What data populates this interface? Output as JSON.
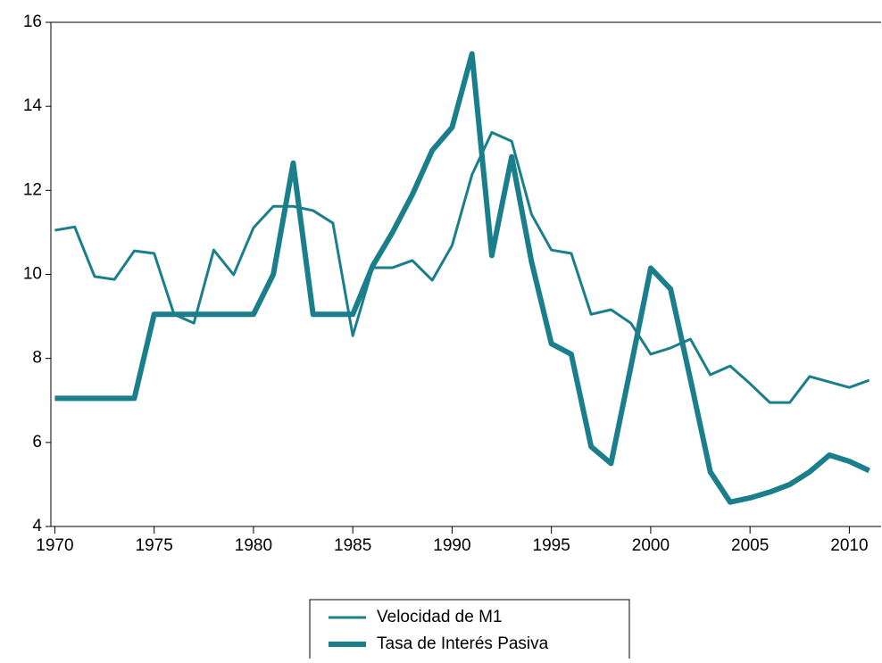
{
  "chart_data": {
    "type": "line",
    "x": [
      1970,
      1971,
      1972,
      1973,
      1974,
      1975,
      1976,
      1977,
      1978,
      1979,
      1980,
      1981,
      1982,
      1983,
      1984,
      1985,
      1986,
      1987,
      1988,
      1989,
      1990,
      1991,
      1992,
      1993,
      1994,
      1995,
      1996,
      1997,
      1998,
      1999,
      2000,
      2001,
      2002,
      2003,
      2004,
      2005,
      2006,
      2007,
      2008,
      2009,
      2010,
      2011
    ],
    "series": [
      {
        "name": "Velocidad de M1",
        "color": "#1b7f8b",
        "width": 3,
        "values": [
          11.05,
          11.13,
          9.95,
          9.88,
          10.56,
          10.5,
          9.05,
          8.84,
          10.58,
          9.99,
          11.11,
          11.62,
          11.62,
          11.52,
          11.22,
          8.54,
          10.16,
          10.16,
          10.33,
          9.86,
          10.69,
          12.37,
          13.38,
          13.17,
          11.43,
          10.58,
          10.5,
          9.05,
          9.16,
          8.84,
          8.1,
          8.25,
          8.46,
          7.61,
          7.82,
          7.4,
          6.95,
          6.95,
          7.57,
          7.44,
          7.31,
          7.48
        ]
      },
      {
        "name": "Tasa de Interés Pasiva",
        "color": "#1b7f8b",
        "width": 6,
        "values": [
          7.05,
          7.05,
          7.05,
          7.05,
          7.05,
          9.05,
          9.05,
          9.05,
          9.05,
          9.05,
          9.05,
          10.0,
          12.65,
          9.05,
          9.05,
          9.05,
          10.2,
          11.0,
          11.9,
          12.95,
          13.5,
          15.25,
          10.45,
          12.8,
          10.3,
          8.35,
          8.1,
          5.9,
          5.5,
          7.8,
          10.15,
          9.65,
          7.5,
          5.3,
          4.58,
          4.68,
          4.82,
          5.0,
          5.3,
          5.7,
          5.55,
          5.33
        ]
      }
    ],
    "xlim": [
      1969.8,
      2011.6
    ],
    "xticks": [
      1970,
      1975,
      1980,
      1985,
      1990,
      1995,
      2000,
      2005,
      2010
    ],
    "ylim": [
      4,
      16
    ],
    "yticks": [
      4,
      6,
      8,
      10,
      12,
      14,
      16
    ]
  }
}
